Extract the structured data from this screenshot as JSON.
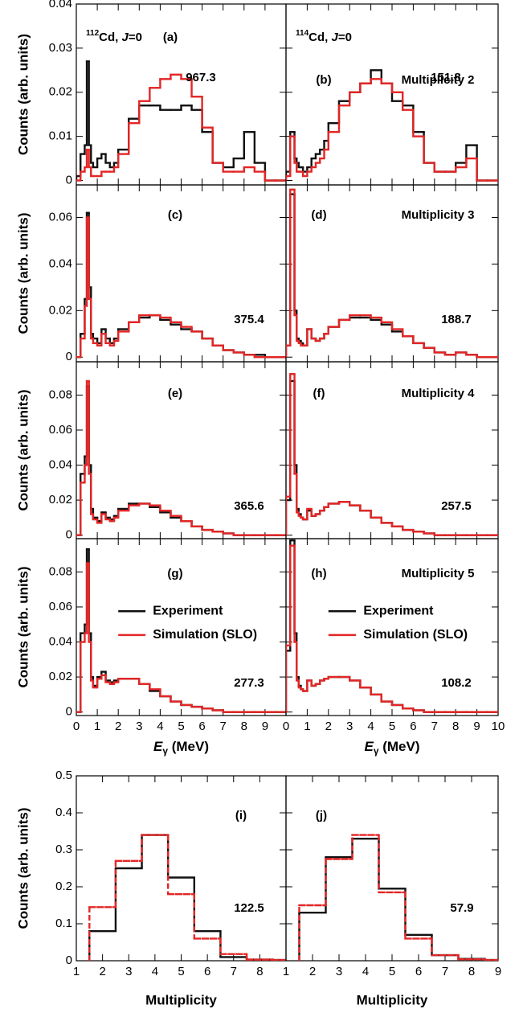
{
  "chart_data": [
    {
      "type": "histogram",
      "panel": "(a)",
      "annotation": "967.3",
      "nucleus": {
        "mass": "112",
        "symbol": "Cd, ",
        "spin": "J",
        "rest": "=0"
      },
      "y_label": "Counts (arb. units)",
      "bins": [
        0,
        0.2,
        0.4,
        0.5,
        0.6,
        0.7,
        0.8,
        1.0,
        1.2,
        1.4,
        1.6,
        1.8,
        2.0,
        2.5,
        3.0,
        3.5,
        4.0,
        4.5,
        5.0,
        5.5,
        6.0,
        6.5,
        7.0,
        7.5,
        8.0,
        8.5,
        9.0,
        9.5,
        10
      ],
      "series": [
        {
          "color": "#111111",
          "values": [
            0.001,
            0.006,
            0.008,
            0.027,
            0.008,
            0.004,
            0.003,
            0.005,
            0.006,
            0.004,
            0.003,
            0.004,
            0.007,
            0.014,
            0.017,
            0.017,
            0.016,
            0.016,
            0.017,
            0.016,
            0.011,
            0.004,
            0.003,
            0.005,
            0.011,
            0.004,
            0,
            0
          ]
        },
        {
          "color": "#e32626",
          "values": [
            0,
            0.002,
            0.003,
            0.007,
            0.003,
            0.001,
            0.001,
            0.001,
            0.002,
            0.002,
            0.002,
            0.003,
            0.006,
            0.013,
            0.018,
            0.021,
            0.023,
            0.024,
            0.023,
            0.019,
            0.012,
            0.004,
            0.002,
            0.002,
            0.003,
            0.002,
            0,
            0
          ]
        }
      ],
      "xlim": [
        0,
        10
      ],
      "ylim": [
        -0.001,
        0.04
      ],
      "yticks": [
        0,
        0.01,
        0.02,
        0.03,
        0.04
      ]
    },
    {
      "type": "histogram",
      "panel": "(b)",
      "annotation": "151.8",
      "multiplicity": "Multiplicity 2",
      "nucleus": {
        "mass": "114",
        "symbol": "Cd, ",
        "spin": "J",
        "rest": "=0"
      },
      "bins": [
        0,
        0.2,
        0.4,
        0.5,
        0.6,
        0.7,
        0.8,
        1.0,
        1.2,
        1.4,
        1.6,
        1.8,
        2.0,
        2.5,
        3.0,
        3.5,
        4.0,
        4.5,
        5.0,
        5.5,
        6.0,
        6.5,
        7.0,
        7.5,
        8.0,
        8.5,
        9.0,
        9.5,
        10
      ],
      "series": [
        {
          "color": "#111111",
          "values": [
            0.002,
            0.011,
            0.005,
            0.004,
            0.003,
            0.003,
            0.002,
            0.003,
            0.005,
            0.006,
            0.007,
            0.009,
            0.013,
            0.018,
            0.02,
            0.022,
            0.025,
            0.022,
            0.018,
            0.017,
            0.011,
            0.004,
            0.002,
            0.002,
            0.004,
            0.008,
            0,
            0
          ]
        },
        {
          "color": "#e32626",
          "values": [
            0.001,
            0.01,
            0.004,
            0.002,
            0.002,
            0.002,
            0.001,
            0.002,
            0.003,
            0.004,
            0.005,
            0.007,
            0.011,
            0.017,
            0.02,
            0.022,
            0.023,
            0.022,
            0.02,
            0.016,
            0.01,
            0.004,
            0.002,
            0.002,
            0.003,
            0.005,
            0,
            0
          ]
        }
      ],
      "xlim": [
        0,
        10
      ],
      "ylim": [
        -0.001,
        0.04
      ]
    },
    {
      "type": "histogram",
      "panel": "(c)",
      "annotation": "375.4",
      "y_label": "Counts (arb. units)",
      "bins": [
        0,
        0.2,
        0.4,
        0.5,
        0.6,
        0.7,
        0.8,
        1.0,
        1.2,
        1.4,
        1.6,
        1.8,
        2.0,
        2.5,
        3.0,
        3.5,
        4.0,
        4.5,
        5.0,
        5.5,
        6.0,
        6.5,
        7.0,
        7.5,
        8.0,
        8.5,
        9.0,
        9.5,
        10
      ],
      "series": [
        {
          "color": "#111111",
          "values": [
            0,
            0.01,
            0.025,
            0.062,
            0.03,
            0.01,
            0.008,
            0.006,
            0.012,
            0.008,
            0.006,
            0.008,
            0.012,
            0.015,
            0.017,
            0.018,
            0.016,
            0.014,
            0.012,
            0.011,
            0.008,
            0.005,
            0.003,
            0.002,
            0.001,
            0.001,
            0,
            0
          ]
        },
        {
          "color": "#e32626",
          "values": [
            0,
            0.008,
            0.022,
            0.06,
            0.025,
            0.008,
            0.006,
            0.005,
            0.01,
            0.006,
            0.005,
            0.007,
            0.011,
            0.015,
            0.018,
            0.018,
            0.017,
            0.015,
            0.013,
            0.011,
            0.008,
            0.005,
            0.003,
            0.002,
            0.001,
            0,
            0,
            0
          ]
        }
      ],
      "xlim": [
        0,
        10
      ],
      "ylim": [
        -0.002,
        0.074
      ],
      "yticks": [
        0,
        0.02,
        0.04,
        0.06
      ]
    },
    {
      "type": "histogram",
      "panel": "(d)",
      "annotation": "188.7",
      "multiplicity": "Multiplicity 3",
      "bins": [
        0,
        0.2,
        0.4,
        0.5,
        0.6,
        0.7,
        0.8,
        1.0,
        1.2,
        1.4,
        1.6,
        1.8,
        2.0,
        2.5,
        3.0,
        3.5,
        4.0,
        4.5,
        5.0,
        5.5,
        6.0,
        6.5,
        7.0,
        7.5,
        8.0,
        8.5,
        9.0,
        9.5,
        10
      ],
      "series": [
        {
          "color": "#111111",
          "values": [
            0.005,
            0.07,
            0.02,
            0.008,
            0.007,
            0.006,
            0.005,
            0.012,
            0.008,
            0.007,
            0.008,
            0.01,
            0.013,
            0.016,
            0.017,
            0.017,
            0.016,
            0.014,
            0.011,
            0.009,
            0.006,
            0.004,
            0.002,
            0.001,
            0.002,
            0.001,
            0,
            0
          ]
        },
        {
          "color": "#e32626",
          "values": [
            0.005,
            0.072,
            0.018,
            0.007,
            0.006,
            0.005,
            0.005,
            0.012,
            0.008,
            0.007,
            0.008,
            0.01,
            0.013,
            0.016,
            0.018,
            0.018,
            0.017,
            0.015,
            0.012,
            0.009,
            0.006,
            0.004,
            0.002,
            0.001,
            0.002,
            0.001,
            0,
            0
          ]
        }
      ],
      "xlim": [
        0,
        10
      ],
      "ylim": [
        -0.002,
        0.074
      ]
    },
    {
      "type": "histogram",
      "panel": "(e)",
      "annotation": "365.6",
      "y_label": "Counts (arb. units)",
      "bins": [
        0,
        0.2,
        0.4,
        0.5,
        0.6,
        0.7,
        0.8,
        1.0,
        1.2,
        1.4,
        1.6,
        1.8,
        2.0,
        2.5,
        3.0,
        3.5,
        4.0,
        4.5,
        5.0,
        5.5,
        6.0,
        6.5,
        7.0,
        7.5,
        8.0,
        8.5,
        9.0,
        9.5,
        10
      ],
      "series": [
        {
          "color": "#111111",
          "values": [
            0,
            0.035,
            0.045,
            0.085,
            0.04,
            0.015,
            0.01,
            0.008,
            0.013,
            0.01,
            0.009,
            0.011,
            0.015,
            0.018,
            0.018,
            0.016,
            0.013,
            0.01,
            0.008,
            0.005,
            0.003,
            0.002,
            0.001,
            0,
            0,
            0,
            0,
            0
          ]
        },
        {
          "color": "#e32626",
          "values": [
            0,
            0.03,
            0.04,
            0.088,
            0.035,
            0.012,
            0.009,
            0.007,
            0.012,
            0.009,
            0.008,
            0.01,
            0.014,
            0.017,
            0.018,
            0.017,
            0.014,
            0.011,
            0.008,
            0.005,
            0.003,
            0.002,
            0.001,
            0,
            0,
            0,
            0,
            0
          ]
        }
      ],
      "xlim": [
        0,
        10
      ],
      "ylim": [
        -0.002,
        0.099
      ],
      "yticks": [
        0,
        0.02,
        0.04,
        0.06,
        0.08
      ]
    },
    {
      "type": "histogram",
      "panel": "(f)",
      "annotation": "257.5",
      "multiplicity": "Multiplicity 4",
      "bins": [
        0,
        0.2,
        0.4,
        0.5,
        0.6,
        0.7,
        0.8,
        1.0,
        1.2,
        1.4,
        1.6,
        1.8,
        2.0,
        2.5,
        3.0,
        3.5,
        4.0,
        4.5,
        5.0,
        5.5,
        6.0,
        6.5,
        7.0,
        7.5,
        8.0,
        8.5,
        9.0,
        9.5,
        10
      ],
      "series": [
        {
          "color": "#111111",
          "values": [
            0.02,
            0.088,
            0.04,
            0.015,
            0.012,
            0.01,
            0.009,
            0.014,
            0.011,
            0.012,
            0.014,
            0.016,
            0.018,
            0.019,
            0.017,
            0.014,
            0.01,
            0.007,
            0.005,
            0.003,
            0.002,
            0.001,
            0,
            0,
            0,
            0,
            0,
            0
          ]
        },
        {
          "color": "#e32626",
          "values": [
            0.022,
            0.092,
            0.035,
            0.013,
            0.011,
            0.01,
            0.009,
            0.015,
            0.011,
            0.012,
            0.014,
            0.016,
            0.018,
            0.019,
            0.017,
            0.014,
            0.01,
            0.007,
            0.005,
            0.003,
            0.002,
            0.001,
            0,
            0,
            0,
            0,
            0,
            0
          ]
        }
      ],
      "xlim": [
        0,
        10
      ],
      "ylim": [
        -0.002,
        0.099
      ]
    },
    {
      "type": "histogram",
      "panel": "(g)",
      "annotation": "277.3",
      "y_label": "Counts (arb. units)",
      "legend": "center",
      "x_label": {
        "symbol": "E",
        "subscript": "γ",
        "unit": " (MeV)"
      },
      "bins": [
        0,
        0.2,
        0.4,
        0.5,
        0.6,
        0.7,
        0.8,
        1.0,
        1.2,
        1.4,
        1.6,
        1.8,
        2.0,
        2.5,
        3.0,
        3.5,
        4.0,
        4.5,
        5.0,
        5.5,
        6.0,
        6.5,
        7.0,
        7.5,
        8.0,
        8.5,
        9.0,
        9.5,
        10
      ],
      "series": [
        {
          "name": "Experiment",
          "color": "#111111",
          "values": [
            0,
            0.045,
            0.05,
            0.093,
            0.045,
            0.02,
            0.015,
            0.02,
            0.023,
            0.018,
            0.017,
            0.018,
            0.019,
            0.019,
            0.016,
            0.012,
            0.009,
            0.006,
            0.004,
            0.003,
            0.002,
            0.001,
            0,
            0,
            0,
            0,
            0,
            0
          ]
        },
        {
          "name": "Simulation (SLO)",
          "color": "#e32626",
          "values": [
            0,
            0.04,
            0.045,
            0.085,
            0.04,
            0.018,
            0.014,
            0.019,
            0.021,
            0.017,
            0.016,
            0.017,
            0.019,
            0.019,
            0.016,
            0.013,
            0.009,
            0.006,
            0.004,
            0.003,
            0.002,
            0.001,
            0,
            0,
            0,
            0,
            0,
            0
          ]
        }
      ],
      "xlim": [
        0,
        10
      ],
      "xticks": [
        0,
        1,
        2,
        3,
        4,
        5,
        6,
        7,
        8,
        9
      ],
      "ylim": [
        -0.002,
        0.099
      ],
      "yticks": [
        0,
        0.02,
        0.04,
        0.06,
        0.08
      ]
    },
    {
      "type": "histogram",
      "panel": "(h)",
      "annotation": "108.2",
      "multiplicity": "Multiplicity 5",
      "legend": "center",
      "x_label": {
        "symbol": "E",
        "subscript": "γ",
        "unit": " (MeV)"
      },
      "bins": [
        0,
        0.2,
        0.4,
        0.5,
        0.6,
        0.7,
        0.8,
        1.0,
        1.2,
        1.4,
        1.6,
        1.8,
        2.0,
        2.5,
        3.0,
        3.5,
        4.0,
        4.5,
        5.0,
        5.5,
        6.0,
        6.5,
        7.0,
        7.5,
        8.0,
        8.5,
        9.0,
        9.5,
        10
      ],
      "series": [
        {
          "name": "Experiment",
          "color": "#111111",
          "values": [
            0.035,
            0.098,
            0.045,
            0.02,
            0.015,
            0.013,
            0.012,
            0.018,
            0.015,
            0.016,
            0.018,
            0.019,
            0.02,
            0.02,
            0.018,
            0.014,
            0.01,
            0.006,
            0.004,
            0.002,
            0.001,
            0,
            0,
            0,
            0,
            0,
            0,
            0
          ]
        },
        {
          "name": "Simulation (SLO)",
          "color": "#e32626",
          "values": [
            0.038,
            0.095,
            0.04,
            0.018,
            0.014,
            0.013,
            0.012,
            0.018,
            0.015,
            0.016,
            0.018,
            0.019,
            0.02,
            0.02,
            0.018,
            0.014,
            0.01,
            0.006,
            0.004,
            0.002,
            0.001,
            0,
            0,
            0,
            0,
            0,
            0,
            0
          ]
        }
      ],
      "xlim": [
        0,
        10
      ],
      "xticks": [
        0,
        1,
        2,
        3,
        4,
        5,
        6,
        7,
        8,
        9,
        10
      ],
      "ylim": [
        -0.002,
        0.099
      ]
    },
    {
      "type": "histogram",
      "panel": "(i)",
      "annotation": "122.5",
      "y_label": "Counts (arb. units)",
      "x_label": "Multiplicity",
      "bins": [
        1.5,
        2.5,
        3.5,
        4.5,
        5.5,
        6.5,
        7.5,
        8.5,
        9
      ],
      "series": [
        {
          "color": "#111111",
          "values": [
            0.08,
            0.25,
            0.34,
            0.225,
            0.08,
            0.01,
            0.003,
            0.002
          ]
        },
        {
          "color": "#e32626",
          "line_style": "dashed",
          "values": [
            0.145,
            0.27,
            0.34,
            0.18,
            0.06,
            0.018,
            0.003,
            0.002
          ]
        }
      ],
      "xlim": [
        1,
        9
      ],
      "xticks": [
        1,
        2,
        3,
        4,
        5,
        6,
        7,
        8
      ],
      "ylim": [
        0,
        0.5
      ],
      "yticks": [
        0,
        0.1,
        0.2,
        0.3,
        0.4,
        0.5
      ]
    },
    {
      "type": "histogram",
      "panel": "(j)",
      "annotation": "57.9",
      "x_label": "Multiplicity",
      "bins": [
        1.5,
        2.5,
        3.5,
        4.5,
        5.5,
        6.5,
        7.5,
        8.5,
        9
      ],
      "series": [
        {
          "color": "#111111",
          "values": [
            0.13,
            0.28,
            0.33,
            0.195,
            0.07,
            0.015,
            0.005,
            0.002
          ]
        },
        {
          "color": "#e32626",
          "line_style": "dashed",
          "values": [
            0.15,
            0.275,
            0.34,
            0.185,
            0.06,
            0.015,
            0.004,
            0.002
          ]
        }
      ],
      "xlim": [
        1,
        9
      ],
      "xticks": [
        1,
        2,
        3,
        4,
        5,
        6,
        7,
        8,
        9
      ],
      "ylim": [
        0,
        0.5
      ]
    }
  ]
}
